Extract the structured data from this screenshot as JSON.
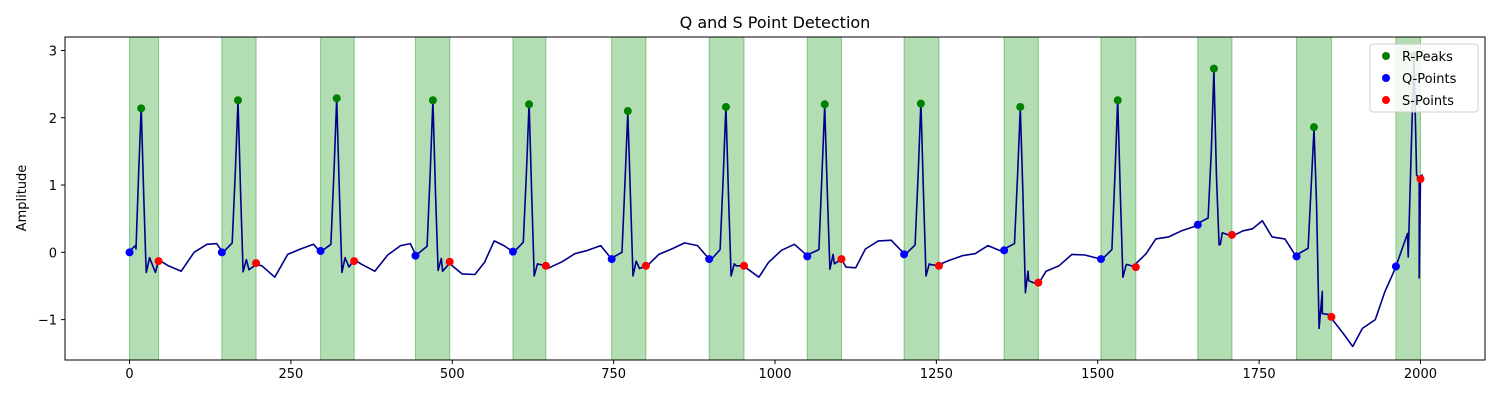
{
  "chart_data": {
    "type": "line",
    "title": "Q and S Point Detection",
    "xlabel": "",
    "ylabel": "Amplitude",
    "xlim": [
      -100,
      2100
    ],
    "ylim": [
      -1.6,
      3.2
    ],
    "xticks": [
      0,
      250,
      500,
      750,
      1000,
      1250,
      1500,
      1750,
      2000
    ],
    "yticks": [
      -1,
      0,
      1,
      2,
      3
    ],
    "grid": false,
    "legend_position": "top-right",
    "colors": {
      "signal": "#00008b",
      "r_peaks": "#008000",
      "q_points": "#0000ff",
      "s_points": "#ff0000",
      "span": "#2ca02c"
    },
    "baseline": [
      [
        0,
        0.0
      ],
      [
        10,
        0.05
      ],
      [
        25,
        -0.1
      ],
      [
        40,
        -0.28
      ],
      [
        60,
        -0.2
      ],
      [
        80,
        -0.3
      ],
      [
        100,
        0.02
      ],
      [
        120,
        0.12
      ],
      [
        135,
        0.15
      ],
      [
        145,
        0.0
      ],
      [
        185,
        -0.28
      ],
      [
        205,
        -0.2
      ],
      [
        225,
        -0.35
      ],
      [
        245,
        -0.05
      ],
      [
        265,
        0.05
      ],
      [
        285,
        0.1
      ],
      [
        298,
        0.02
      ],
      [
        340,
        -0.2
      ],
      [
        360,
        -0.18
      ],
      [
        380,
        -0.3
      ],
      [
        400,
        -0.02
      ],
      [
        420,
        0.1
      ],
      [
        435,
        0.15
      ],
      [
        443,
        -0.05
      ],
      [
        485,
        -0.3
      ],
      [
        500,
        -0.2
      ],
      [
        515,
        -0.3
      ],
      [
        535,
        -0.35
      ],
      [
        550,
        -0.15
      ],
      [
        565,
        0.15
      ],
      [
        580,
        0.12
      ],
      [
        595,
        0.02
      ],
      [
        635,
        -0.2
      ],
      [
        650,
        -0.25
      ],
      [
        670,
        -0.12
      ],
      [
        690,
        -0.02
      ],
      [
        710,
        0.05
      ],
      [
        730,
        0.08
      ],
      [
        748,
        -0.1
      ],
      [
        790,
        -0.22
      ],
      [
        800,
        -0.2
      ],
      [
        820,
        -0.05
      ],
      [
        840,
        0.05
      ],
      [
        860,
        0.12
      ],
      [
        880,
        0.12
      ],
      [
        900,
        -0.1
      ],
      [
        940,
        -0.22
      ],
      [
        955,
        -0.25
      ],
      [
        975,
        -0.35
      ],
      [
        990,
        -0.15
      ],
      [
        1010,
        0.05
      ],
      [
        1030,
        0.1
      ],
      [
        1050,
        -0.05
      ],
      [
        1092,
        -0.15
      ],
      [
        1110,
        -0.2
      ],
      [
        1125,
        -0.25
      ],
      [
        1140,
        0.05
      ],
      [
        1160,
        0.15
      ],
      [
        1180,
        0.2
      ],
      [
        1200,
        -0.02
      ],
      [
        1240,
        -0.2
      ],
      [
        1255,
        -0.2
      ],
      [
        1270,
        -0.1
      ],
      [
        1290,
        -0.05
      ],
      [
        1310,
        0.0
      ],
      [
        1330,
        0.08
      ],
      [
        1350,
        0.02
      ],
      [
        1392,
        -0.3
      ],
      [
        1400,
        -0.45
      ],
      [
        1420,
        -0.3
      ],
      [
        1440,
        -0.2
      ],
      [
        1460,
        -0.05
      ],
      [
        1480,
        -0.02
      ],
      [
        1505,
        -0.1
      ],
      [
        1545,
        -0.2
      ],
      [
        1560,
        -0.18
      ],
      [
        1575,
        0.0
      ],
      [
        1590,
        0.2
      ],
      [
        1610,
        0.25
      ],
      [
        1630,
        0.3
      ],
      [
        1655,
        0.4
      ],
      [
        1690,
        0.1
      ],
      [
        1705,
        0.25
      ],
      [
        1725,
        0.3
      ],
      [
        1740,
        0.35
      ],
      [
        1755,
        0.45
      ],
      [
        1770,
        0.25
      ],
      [
        1790,
        0.2
      ],
      [
        1808,
        -0.05
      ],
      [
        1848,
        -0.6
      ],
      [
        1862,
        -0.95
      ],
      [
        1880,
        -1.2
      ],
      [
        1895,
        -1.38
      ],
      [
        1910,
        -1.15
      ],
      [
        1930,
        -1.0
      ],
      [
        1945,
        -0.6
      ],
      [
        1962,
        -0.2
      ],
      [
        1980,
        0.3
      ],
      [
        1998,
        1.1
      ],
      [
        2000,
        1.1
      ]
    ],
    "r_peaks": {
      "name": "R-Peaks",
      "x": [
        18,
        168,
        321,
        470,
        619,
        772,
        924,
        1077,
        1226,
        1380,
        1531,
        1680,
        1835,
        1990
      ],
      "y": [
        2.14,
        2.26,
        2.29,
        2.26,
        2.2,
        2.1,
        2.16,
        2.2,
        2.21,
        2.16,
        2.26,
        2.73,
        1.86,
        2.92
      ]
    },
    "q_points": {
      "name": "Q-Points",
      "x": [
        0,
        143,
        296,
        443,
        594,
        747,
        898,
        1050,
        1200,
        1355,
        1505,
        1655,
        1808,
        1962
      ],
      "y": [
        0.0,
        0.0,
        0.02,
        -0.05,
        0.01,
        -0.1,
        -0.1,
        -0.06,
        -0.03,
        0.03,
        -0.1,
        0.41,
        -0.06,
        -0.21
      ]
    },
    "s_points": {
      "name": "S-Points",
      "x": [
        45,
        196,
        348,
        496,
        645,
        800,
        952,
        1103,
        1254,
        1408,
        1559,
        1708,
        1862,
        2000
      ],
      "y": [
        -0.13,
        -0.16,
        -0.13,
        -0.14,
        -0.2,
        -0.2,
        -0.2,
        -0.1,
        -0.2,
        -0.45,
        -0.22,
        0.26,
        -0.96,
        1.09
      ]
    },
    "qrs_spans": [
      [
        0,
        45
      ],
      [
        143,
        196
      ],
      [
        296,
        348
      ],
      [
        443,
        496
      ],
      [
        594,
        645
      ],
      [
        747,
        800
      ],
      [
        898,
        952
      ],
      [
        1050,
        1103
      ],
      [
        1200,
        1254
      ],
      [
        1355,
        1408
      ],
      [
        1505,
        1559
      ],
      [
        1655,
        1708
      ],
      [
        1808,
        1862
      ],
      [
        1962,
        2000
      ]
    ]
  }
}
